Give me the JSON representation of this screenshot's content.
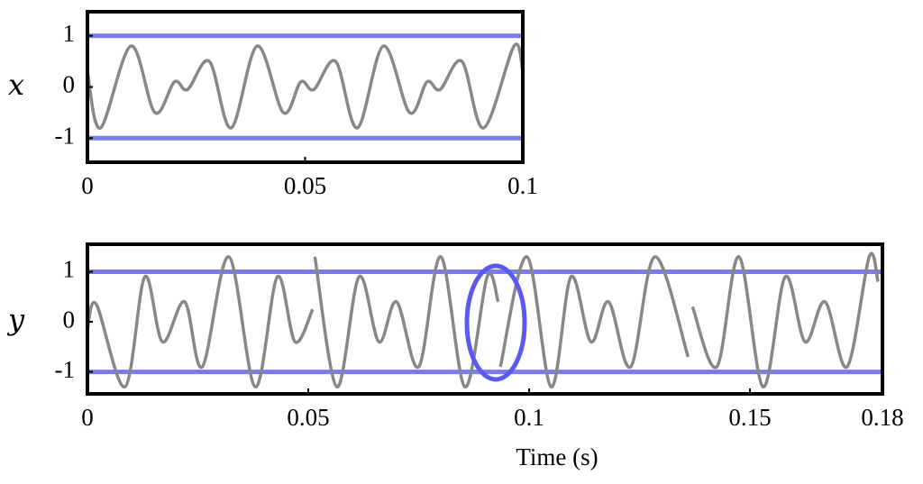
{
  "chart_data": [
    {
      "type": "line",
      "ylabel": "x",
      "x": [
        0,
        0.003,
        0.01,
        0.0155,
        0.02,
        0.023,
        0.028,
        0.033,
        0.039,
        0.045,
        0.049,
        0.052,
        0.057,
        0.062,
        0.068,
        0.074,
        0.078,
        0.081,
        0.086,
        0.091,
        0.098,
        0.1
      ],
      "series": [
        {
          "color": "#888888",
          "values": [
            0.3,
            -0.8,
            0.8,
            -0.5,
            0.1,
            -0.05,
            0.5,
            -0.8,
            0.8,
            -0.5,
            0.1,
            -0.05,
            0.5,
            -0.8,
            0.8,
            -0.5,
            0.1,
            -0.05,
            0.5,
            -0.8,
            0.8,
            0.3
          ]
        }
      ],
      "hlines": {
        "values": [
          1,
          -1
        ],
        "color": "#7b7bef"
      },
      "xlim": [
        0,
        0.1
      ],
      "ylim": [
        -1.47,
        1.47
      ],
      "xticks": [
        0,
        0.05,
        0.1
      ],
      "yticks": [
        -1,
        0,
        1
      ]
    },
    {
      "type": "line",
      "ylabel": "y",
      "xlabel": "Time (s)",
      "x": [
        0,
        0.002,
        0.0085,
        0.013,
        0.017,
        0.022,
        0.026,
        0.032,
        0.038,
        0.043,
        0.047,
        0.051,
        null,
        0.0515,
        0.0565,
        0.0615,
        0.066,
        0.07,
        0.075,
        0.08,
        0.0855,
        0.0905,
        0.093,
        null,
        0.0935,
        0.0995,
        0.105,
        0.1095,
        0.114,
        0.118,
        0.123,
        0.1285,
        0.136,
        null,
        0.137,
        0.1425,
        0.1475,
        0.153,
        0.158,
        0.1625,
        0.167,
        0.172,
        0.177,
        0.179
      ],
      "series": [
        {
          "color": "#888888",
          "values": [
            -0.15,
            0.35,
            -1.3,
            0.9,
            -0.4,
            0.4,
            -0.9,
            1.3,
            -1.3,
            0.9,
            -0.4,
            0.25,
            null,
            1.3,
            -1.3,
            0.9,
            -0.4,
            0.4,
            -0.9,
            1.3,
            -1.3,
            0.9,
            0.4,
            null,
            -0.9,
            1.3,
            -1.3,
            0.9,
            -0.4,
            0.4,
            -0.9,
            1.3,
            -0.7,
            null,
            0.3,
            -0.9,
            1.3,
            -1.3,
            0.9,
            -0.4,
            0.4,
            -0.9,
            1.3,
            0.8
          ]
        }
      ],
      "hlines": {
        "values": [
          1,
          -1
        ],
        "color": "#7b7bef"
      },
      "xlim": [
        0,
        0.18
      ],
      "ylim": [
        -1.44,
        1.55
      ],
      "xticks": [
        0,
        0.05,
        0.1,
        0.15,
        0.18
      ],
      "yticks": [
        -1,
        0,
        1
      ]
    }
  ]
}
